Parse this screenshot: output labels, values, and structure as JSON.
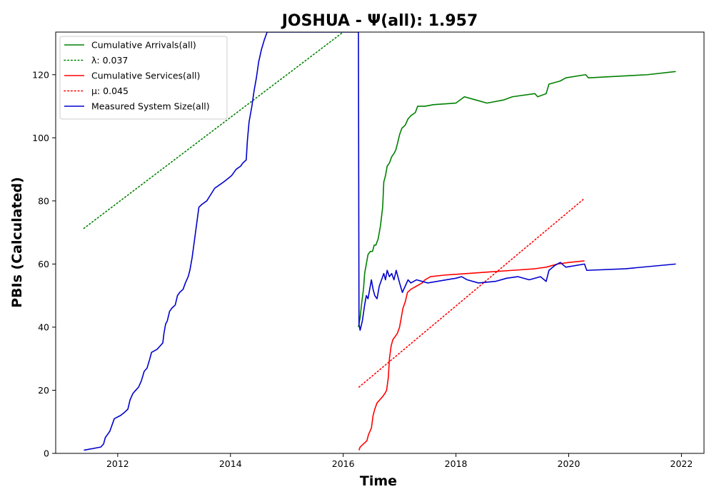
{
  "chart_data": {
    "type": "line",
    "title": "JOSHUA -  Ψ(all): 1.957",
    "xlabel": "Time",
    "ylabel": "PBIs (Calculated)",
    "xlim": [
      2010.9,
      2022.4
    ],
    "ylim": [
      0,
      133.5
    ],
    "xticks": [
      2012,
      2014,
      2016,
      2018,
      2020,
      2022
    ],
    "yticks": [
      0,
      20,
      40,
      60,
      80,
      100,
      120
    ],
    "x_tick_labels": [
      "2012",
      "2014",
      "2016",
      "2018",
      "2020",
      "2022"
    ],
    "y_tick_labels": [
      "0",
      "20",
      "40",
      "60",
      "80",
      "100",
      "120"
    ],
    "grid": false,
    "legend_position": "top-left",
    "series": [
      {
        "name": "Cumulative Arrivals(all)",
        "color": "#008000",
        "style": "solid",
        "points": [
          [
            2016.27,
            40
          ],
          [
            2016.3,
            43
          ],
          [
            2016.33,
            48
          ],
          [
            2016.36,
            52
          ],
          [
            2016.38,
            57
          ],
          [
            2016.41,
            60
          ],
          [
            2016.44,
            63
          ],
          [
            2016.48,
            64
          ],
          [
            2016.52,
            64
          ],
          [
            2016.55,
            66
          ],
          [
            2016.58,
            66
          ],
          [
            2016.62,
            68
          ],
          [
            2016.66,
            72
          ],
          [
            2016.7,
            78
          ],
          [
            2016.72,
            86
          ],
          [
            2016.75,
            88
          ],
          [
            2016.78,
            91
          ],
          [
            2016.82,
            92
          ],
          [
            2016.86,
            94
          ],
          [
            2016.9,
            95
          ],
          [
            2016.93,
            96
          ],
          [
            2016.96,
            98
          ],
          [
            2017.0,
            101
          ],
          [
            2017.04,
            103
          ],
          [
            2017.1,
            104
          ],
          [
            2017.15,
            106
          ],
          [
            2017.2,
            107
          ],
          [
            2017.28,
            108
          ],
          [
            2017.32,
            110
          ],
          [
            2017.45,
            110
          ],
          [
            2017.6,
            110.5
          ],
          [
            2018.0,
            111
          ],
          [
            2018.15,
            113
          ],
          [
            2018.35,
            112
          ],
          [
            2018.55,
            111
          ],
          [
            2018.85,
            112
          ],
          [
            2019.0,
            113
          ],
          [
            2019.4,
            114
          ],
          [
            2019.45,
            113
          ],
          [
            2019.6,
            114
          ],
          [
            2019.65,
            117
          ],
          [
            2019.85,
            118
          ],
          [
            2019.95,
            119
          ],
          [
            2020.3,
            120
          ],
          [
            2020.35,
            119
          ],
          [
            2021.4,
            120
          ],
          [
            2021.9,
            121
          ]
        ]
      },
      {
        "name": "λ: 0.037",
        "color": "#008000",
        "style": "dotted",
        "points": [
          [
            2011.4,
            71.3
          ],
          [
            2016.0,
            133.5
          ]
        ]
      },
      {
        "name": "Cumulative Services(all)",
        "color": "#ff0000",
        "style": "solid",
        "points": [
          [
            2016.28,
            1
          ],
          [
            2016.3,
            2
          ],
          [
            2016.36,
            3
          ],
          [
            2016.42,
            4
          ],
          [
            2016.45,
            6
          ],
          [
            2016.5,
            8
          ],
          [
            2016.53,
            12
          ],
          [
            2016.56,
            14
          ],
          [
            2016.6,
            16
          ],
          [
            2016.65,
            17
          ],
          [
            2016.7,
            18
          ],
          [
            2016.74,
            19
          ],
          [
            2016.77,
            20
          ],
          [
            2016.8,
            24
          ],
          [
            2016.82,
            30
          ],
          [
            2016.85,
            34
          ],
          [
            2016.88,
            36
          ],
          [
            2016.92,
            37
          ],
          [
            2016.96,
            38
          ],
          [
            2017.0,
            40
          ],
          [
            2017.03,
            43
          ],
          [
            2017.06,
            46
          ],
          [
            2017.1,
            48
          ],
          [
            2017.14,
            51
          ],
          [
            2017.2,
            52
          ],
          [
            2017.3,
            53
          ],
          [
            2017.4,
            54
          ],
          [
            2017.45,
            55
          ],
          [
            2017.55,
            56
          ],
          [
            2017.8,
            56.5
          ],
          [
            2018.2,
            57
          ],
          [
            2018.6,
            57.5
          ],
          [
            2019.0,
            58
          ],
          [
            2019.4,
            58.5
          ],
          [
            2019.6,
            59
          ],
          [
            2019.8,
            60
          ],
          [
            2020.0,
            60.5
          ],
          [
            2020.28,
            61
          ]
        ]
      },
      {
        "name": "μ: 0.045",
        "color": "#ff0000",
        "style": "dotted",
        "points": [
          [
            2016.28,
            21
          ],
          [
            2020.28,
            80.8
          ]
        ]
      },
      {
        "name": "Measured System Size(all)",
        "color": "#0000cd",
        "style": "solid",
        "points": [
          [
            2011.4,
            1
          ],
          [
            2011.7,
            2
          ],
          [
            2011.75,
            3
          ],
          [
            2011.78,
            5
          ],
          [
            2011.82,
            6
          ],
          [
            2011.86,
            7
          ],
          [
            2011.9,
            9
          ],
          [
            2011.94,
            11
          ],
          [
            2012.05,
            12
          ],
          [
            2012.12,
            13
          ],
          [
            2012.18,
            14
          ],
          [
            2012.22,
            17
          ],
          [
            2012.27,
            19
          ],
          [
            2012.32,
            20
          ],
          [
            2012.37,
            21
          ],
          [
            2012.42,
            23
          ],
          [
            2012.47,
            26
          ],
          [
            2012.52,
            27
          ],
          [
            2012.57,
            30
          ],
          [
            2012.6,
            32
          ],
          [
            2012.7,
            33
          ],
          [
            2012.75,
            34
          ],
          [
            2012.8,
            35
          ],
          [
            2012.82,
            38
          ],
          [
            2012.85,
            41
          ],
          [
            2012.88,
            42
          ],
          [
            2012.92,
            45
          ],
          [
            2012.96,
            46
          ],
          [
            2013.02,
            47
          ],
          [
            2013.06,
            50
          ],
          [
            2013.1,
            51
          ],
          [
            2013.16,
            52
          ],
          [
            2013.2,
            54
          ],
          [
            2013.25,
            56
          ],
          [
            2013.28,
            58
          ],
          [
            2013.32,
            62
          ],
          [
            2013.35,
            66
          ],
          [
            2013.38,
            70
          ],
          [
            2013.41,
            74
          ],
          [
            2013.44,
            78
          ],
          [
            2013.5,
            79
          ],
          [
            2013.58,
            80
          ],
          [
            2013.65,
            82
          ],
          [
            2013.72,
            84
          ],
          [
            2013.8,
            85
          ],
          [
            2013.88,
            86
          ],
          [
            2013.95,
            87
          ],
          [
            2014.02,
            88
          ],
          [
            2014.1,
            90
          ],
          [
            2014.18,
            91
          ],
          [
            2014.22,
            92
          ],
          [
            2014.28,
            93
          ],
          [
            2014.3,
            99
          ],
          [
            2014.33,
            105
          ],
          [
            2014.38,
            110
          ],
          [
            2014.42,
            115
          ],
          [
            2014.46,
            119
          ],
          [
            2014.5,
            124
          ],
          [
            2014.55,
            128
          ],
          [
            2014.6,
            131
          ],
          [
            2014.65,
            133.5
          ],
          [
            2016.27,
            133.5
          ],
          [
            2016.28,
            41
          ],
          [
            2016.3,
            39
          ],
          [
            2016.34,
            42
          ],
          [
            2016.38,
            47
          ],
          [
            2016.41,
            50
          ],
          [
            2016.44,
            49
          ],
          [
            2016.47,
            52
          ],
          [
            2016.5,
            55
          ],
          [
            2016.53,
            52
          ],
          [
            2016.56,
            50
          ],
          [
            2016.6,
            49
          ],
          [
            2016.64,
            53
          ],
          [
            2016.68,
            55
          ],
          [
            2016.72,
            57
          ],
          [
            2016.75,
            55
          ],
          [
            2016.78,
            58
          ],
          [
            2016.82,
            56
          ],
          [
            2016.86,
            57
          ],
          [
            2016.9,
            55
          ],
          [
            2016.94,
            58
          ],
          [
            2016.97,
            56
          ],
          [
            2017.0,
            54
          ],
          [
            2017.05,
            51
          ],
          [
            2017.1,
            53
          ],
          [
            2017.15,
            55
          ],
          [
            2017.2,
            54
          ],
          [
            2017.3,
            55
          ],
          [
            2017.5,
            54
          ],
          [
            2018.0,
            55.5
          ],
          [
            2018.1,
            56
          ],
          [
            2018.2,
            55
          ],
          [
            2018.4,
            54
          ],
          [
            2018.7,
            54.5
          ],
          [
            2018.9,
            55.5
          ],
          [
            2019.1,
            56
          ],
          [
            2019.3,
            55
          ],
          [
            2019.5,
            56
          ],
          [
            2019.6,
            54.5
          ],
          [
            2019.65,
            58
          ],
          [
            2019.75,
            59.5
          ],
          [
            2019.85,
            60.5
          ],
          [
            2019.95,
            59
          ],
          [
            2020.28,
            60
          ],
          [
            2020.32,
            58
          ],
          [
            2021.0,
            58.5
          ],
          [
            2021.9,
            60
          ]
        ]
      }
    ]
  }
}
